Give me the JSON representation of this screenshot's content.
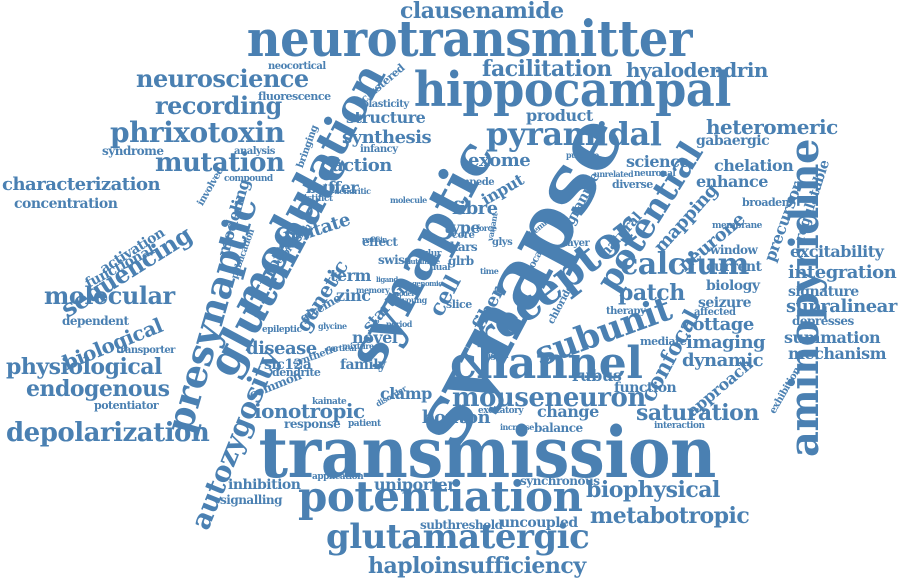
{
  "color": "#4a80b2",
  "words": [
    "transmission",
    "synapse",
    "synaptic",
    "neurotransmitter",
    "hippocampal",
    "glutamate",
    "modulation",
    "potentiation",
    "receptor",
    "channel",
    "aminopyridine",
    "presynaptic",
    "glutamatergic",
    "potential",
    "pyramidal",
    "subunit",
    "calcium",
    "mouseneuron",
    "clausenamide",
    "neuroscience",
    "facilitation",
    "hyalodendrin",
    "phrixotoxin",
    "recording",
    "mutation",
    "heteromeric",
    "depolarization",
    "haploinsufficiency",
    "characterization",
    "physiological",
    "endogenous",
    "molecular",
    "sequencing",
    "biological",
    "autozygosity",
    "saturation",
    "metabotropic",
    "biophysical",
    "integration",
    "excitability",
    "supralinear",
    "summation",
    "mechanism",
    "ionotropic",
    "bouton",
    "patch",
    "imaging",
    "dynamic",
    "confocal",
    "action",
    "synthesis",
    "structure",
    "product",
    "exome",
    "science",
    "enhance",
    "chelation",
    "gabaergic",
    "mapping",
    "neurone",
    "precursor",
    "regulatable",
    "fibre",
    "input",
    "type",
    "dentate",
    "protein",
    "genetic",
    "term",
    "zinc",
    "glycine",
    "disease",
    "slc12a",
    "family",
    "novel",
    "clamp",
    "cell",
    "starter",
    "fiber",
    "granule",
    "natural",
    "modeling",
    "buffer",
    "syndrome",
    "concentration",
    "activation",
    "functional",
    "dependent",
    "transporter",
    "potentiator",
    "common",
    "uniporter",
    "inhibition",
    "signalling",
    "subthreshold",
    "uncoupled",
    "synchronous",
    "change",
    "balance",
    "response",
    "seizure",
    "biology",
    "cottage",
    "rubus",
    "signature",
    "depresses",
    "current",
    "window",
    "broaden",
    "function",
    "approach",
    "exhibition",
    "neocortical",
    "fluorescence",
    "clustered",
    "plasticity",
    "analysis",
    "infancy",
    "bringing",
    "compound",
    "involved",
    "distinct",
    "publication",
    "expression",
    "effect",
    "swiss",
    "glrb",
    "kars",
    "core",
    "glys",
    "layer",
    "local",
    "chloride",
    "affected",
    "therapy",
    "mediate",
    "neuronal",
    "diverse",
    "unrelated",
    "putative",
    "impede",
    "epileptic",
    "kainate",
    "patient",
    "application",
    "excitatory",
    "increase",
    "interaction",
    "membrane",
    "dendrite",
    "memory",
    "mixture",
    "signal",
    "dendritic",
    "time",
    "dual",
    "slice",
    "glur",
    "variant",
    "chemical",
    "force",
    "period",
    "cortical",
    "molecule",
    "remain",
    "synthetic",
    "disorder",
    "young",
    "ligand",
    "model",
    "glycine",
    "glutamine",
    "genomic"
  ]
}
